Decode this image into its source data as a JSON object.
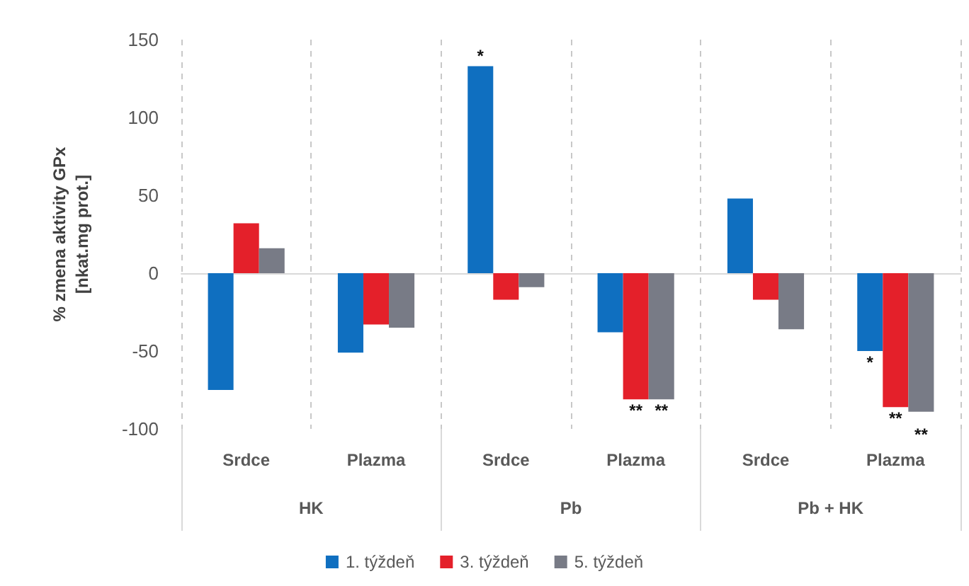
{
  "chart_data": {
    "type": "bar",
    "ylabel": "% zmena aktivity GPx\n[nkat.mg prot.]",
    "categories": [
      "Srdce",
      "Plazma",
      "Srdce",
      "Plazma",
      "Srdce",
      "Plazma"
    ],
    "series": [
      {
        "name": "1. týždeň",
        "color": "#0f6fc0",
        "values": [
          -75,
          -51,
          133,
          -38,
          48,
          -50
        ]
      },
      {
        "name": "3. týždeň",
        "color": "#e4202a",
        "values": [
          32,
          -33,
          -17,
          -81,
          -17,
          -86
        ]
      },
      {
        "name": "5. týždeň",
        "color": "#787b86",
        "values": [
          16,
          -35,
          -9,
          -81,
          -36,
          -89
        ]
      }
    ],
    "ylim": [
      -100,
      150
    ],
    "yticks": [
      -100,
      -50,
      0,
      50,
      100,
      150
    ],
    "grid": "x",
    "legend": "bottom",
    "annotations": [
      "HK",
      "Pb",
      "Pb + HK",
      "*",
      "**",
      "**",
      "*",
      "**",
      "**"
    ]
  }
}
